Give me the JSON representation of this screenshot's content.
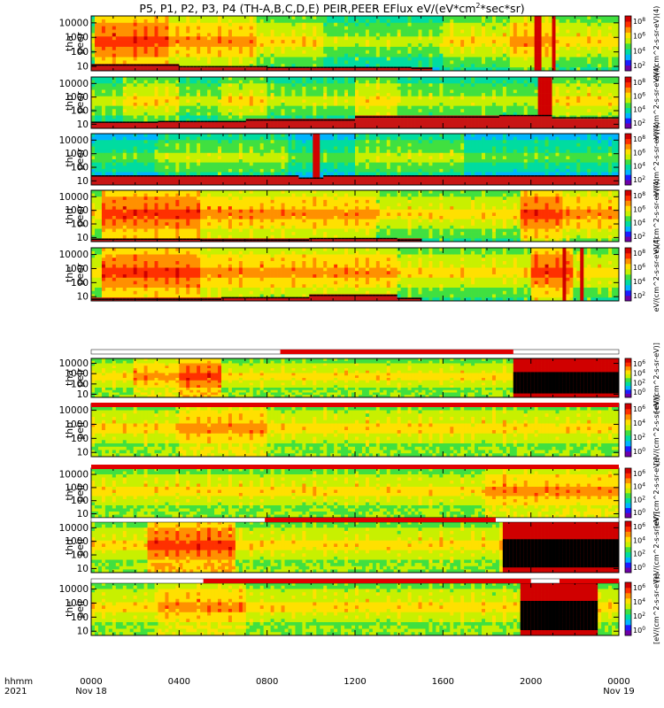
{
  "chart_data": {
    "type": "heatmap",
    "title": "P5, P1, P2, P3, P4 (TH-A,B,C,D,E) PEIR,PEER EFlux eV/(eV*cm",
    "title_sup": "2",
    "title_tail": "*sec*sr)",
    "x_axis": {
      "row1_label": "hhmm",
      "row2_label": "2021",
      "ticks": [
        {
          "hour": 0,
          "label": "0000",
          "date": "Nov 18"
        },
        {
          "hour": 4,
          "label": "0400",
          "date": ""
        },
        {
          "hour": 8,
          "label": "0800",
          "date": ""
        },
        {
          "hour": 12,
          "label": "1200",
          "date": ""
        },
        {
          "hour": 16,
          "label": "1600",
          "date": ""
        },
        {
          "hour": 20,
          "label": "2000",
          "date": ""
        },
        {
          "hour": 24,
          "label": "0000",
          "date": "Nov 19"
        }
      ],
      "range_hours": [
        0,
        24
      ]
    },
    "y_axis": {
      "scale": "log",
      "ticks": [
        "10",
        "100",
        "1000",
        "10000"
      ],
      "range": [
        5,
        30000
      ]
    },
    "colorbar": {
      "colors": [
        "#6e00a8",
        "#1c1cff",
        "#00b4ff",
        "#00dca0",
        "#40e040",
        "#c8f000",
        "#ffe000",
        "#ff9000",
        "#ff3000",
        "#d00000"
      ],
      "peer_ticks": [
        {
          "base": "10",
          "exp": "8"
        },
        {
          "base": "10",
          "exp": "6"
        },
        {
          "base": "10",
          "exp": "4"
        },
        {
          "base": "10",
          "exp": "2"
        }
      ],
      "peir_ticks": [
        {
          "base": "10",
          "exp": "6"
        },
        {
          "base": "10",
          "exp": "4"
        },
        {
          "base": "10",
          "exp": "2"
        },
        {
          "base": "10",
          "exp": "0"
        }
      ],
      "peer_label": "eV/(cm^2-s-sr-eV)(4)",
      "peir_label": "[eV/(cm^2-s-sr-eV)]"
    },
    "panels": [
      {
        "probe": "tha",
        "product": "peer",
        "base_level": 6,
        "activity": [
          [
            0,
            0.2,
            5
          ],
          [
            0.2,
            1.0,
            8
          ],
          [
            1.0,
            3.5,
            8
          ],
          [
            3.5,
            7.5,
            7
          ],
          [
            7.5,
            10.5,
            6
          ],
          [
            10.5,
            14.0,
            5
          ],
          [
            14.0,
            16.0,
            5
          ],
          [
            16.0,
            19.0,
            6
          ],
          [
            19.0,
            21.0,
            7
          ],
          [
            21.0,
            24.0,
            6
          ]
        ],
        "floor": [
          [
            0,
            0.8
          ],
          [
            4,
            0.6
          ],
          [
            8,
            0.5
          ],
          [
            12,
            0.5
          ],
          [
            14.5,
            0.4
          ],
          [
            15.5,
            0.0
          ]
        ],
        "gaps": [
          [
            20.2,
            20.5
          ],
          [
            21.0,
            21.1
          ]
        ]
      },
      {
        "probe": "thb",
        "product": "peer",
        "base_level": 5,
        "activity": [
          [
            0,
            1.5,
            5
          ],
          [
            1.5,
            4.0,
            6
          ],
          [
            4.0,
            6.0,
            5
          ],
          [
            6.0,
            8.0,
            6
          ],
          [
            8.0,
            12.0,
            5
          ],
          [
            12.0,
            14.0,
            6
          ],
          [
            14.0,
            18.0,
            5
          ],
          [
            18.0,
            21.0,
            5
          ],
          [
            21.0,
            24.0,
            6
          ]
        ],
        "floor": [
          [
            0,
            0.9
          ],
          [
            3,
            1.0
          ],
          [
            7,
            1.2
          ],
          [
            12,
            1.6
          ],
          [
            18.5,
            1.8
          ],
          [
            21,
            1.5
          ],
          [
            24,
            1.8
          ]
        ],
        "gaps": [
          [
            20.4,
            20.9
          ]
        ]
      },
      {
        "probe": "thc",
        "product": "peer",
        "base_level": 4,
        "activity": [
          [
            0,
            3.0,
            4
          ],
          [
            3.0,
            9.0,
            5
          ],
          [
            9.0,
            12.0,
            4
          ],
          [
            12.0,
            17.0,
            5
          ],
          [
            17.0,
            24.0,
            4
          ]
        ],
        "floor": [
          [
            0,
            1.3
          ],
          [
            9.5,
            1.0
          ],
          [
            10.5,
            1.3
          ],
          [
            24,
            1.5
          ]
        ],
        "gaps": [
          [
            10.1,
            10.4
          ]
        ]
      },
      {
        "probe": "thd",
        "product": "peer",
        "base_level": 6,
        "activity": [
          [
            0,
            0.5,
            6
          ],
          [
            0.5,
            5.0,
            8
          ],
          [
            5.0,
            9.0,
            7
          ],
          [
            9.0,
            13.0,
            7
          ],
          [
            13.0,
            15.0,
            6
          ],
          [
            15.0,
            19.5,
            6
          ],
          [
            19.5,
            21.5,
            8
          ],
          [
            21.5,
            24.0,
            7
          ]
        ],
        "floor": [
          [
            0,
            0.4
          ],
          [
            5,
            0.3
          ],
          [
            10,
            0.5
          ],
          [
            14,
            0.3
          ],
          [
            15,
            0.0
          ]
        ],
        "gaps": [
          [
            20.6,
            20.7
          ]
        ]
      },
      {
        "probe": "the",
        "product": "peer",
        "base_level": 6,
        "activity": [
          [
            0,
            0.5,
            6
          ],
          [
            0.5,
            5.0,
            8
          ],
          [
            5.0,
            10.0,
            7
          ],
          [
            10.0,
            14.0,
            7
          ],
          [
            14.0,
            17.0,
            6
          ],
          [
            17.0,
            20.0,
            6
          ],
          [
            20.0,
            22.0,
            8
          ],
          [
            22.0,
            24.0,
            6
          ]
        ],
        "floor": [
          [
            0,
            0.3
          ],
          [
            6,
            0.5
          ],
          [
            10,
            0.8
          ],
          [
            14,
            0.4
          ],
          [
            15,
            0.0
          ]
        ],
        "gaps": [
          [
            21.4,
            21.6
          ],
          [
            22.3,
            22.4
          ]
        ]
      },
      {
        "probe": "tha",
        "product": "peir",
        "base_level": 5,
        "activity": [
          [
            0,
            2.0,
            6
          ],
          [
            2.0,
            4.0,
            7
          ],
          [
            4.0,
            6.0,
            8
          ],
          [
            6.0,
            8.0,
            6
          ],
          [
            8.0,
            19.0,
            6
          ],
          [
            19.0,
            24.0,
            6
          ]
        ],
        "floor": [
          [
            0,
            0.0
          ]
        ],
        "gaps": [
          [
            19.2,
            24.0
          ]
        ],
        "bar": [
          [
            0,
            24,
            "white"
          ],
          [
            8.6,
            19.2,
            "red"
          ]
        ]
      },
      {
        "probe": "thb",
        "product": "peir",
        "base_level": 4,
        "activity": [
          [
            0,
            4.0,
            6
          ],
          [
            4.0,
            8.0,
            7
          ],
          [
            8.0,
            12.0,
            6
          ],
          [
            12.0,
            18.0,
            6
          ],
          [
            18.0,
            24.0,
            6
          ]
        ],
        "floor": [
          [
            0,
            0.0
          ]
        ],
        "gaps": [],
        "bar": [
          [
            0,
            24,
            "red"
          ]
        ]
      },
      {
        "probe": "thc",
        "product": "peir",
        "base_level": 5,
        "activity": [
          [
            0,
            3.0,
            6
          ],
          [
            3.0,
            8.0,
            6
          ],
          [
            8.0,
            12.0,
            6
          ],
          [
            12.0,
            18.0,
            6
          ],
          [
            18.0,
            24.0,
            7
          ]
        ],
        "floor": [
          [
            0,
            0.0
          ]
        ],
        "gaps": [],
        "bar": [
          [
            0,
            24,
            "red"
          ]
        ]
      },
      {
        "probe": "thd",
        "product": "peir",
        "base_level": 5,
        "activity": [
          [
            0,
            2.5,
            6
          ],
          [
            2.5,
            6.5,
            8
          ],
          [
            6.5,
            12.0,
            6
          ],
          [
            12.0,
            18.5,
            6
          ],
          [
            18.5,
            24.0,
            7
          ]
        ],
        "floor": [
          [
            0,
            0.0
          ]
        ],
        "gaps": [
          [
            18.7,
            24.0
          ]
        ],
        "bar": [
          [
            0,
            24,
            "white"
          ],
          [
            7.9,
            18.4,
            "red"
          ]
        ]
      },
      {
        "probe": "the",
        "product": "peir",
        "base_level": 5,
        "activity": [
          [
            0,
            3.0,
            6
          ],
          [
            3.0,
            7.0,
            7
          ],
          [
            7.0,
            14.0,
            6
          ],
          [
            14.0,
            19.0,
            6
          ],
          [
            19.0,
            24.0,
            6
          ]
        ],
        "floor": [
          [
            0,
            0.0
          ]
        ],
        "gaps": [
          [
            19.6,
            23.0
          ]
        ],
        "bar": [
          [
            0,
            24,
            "white"
          ],
          [
            5.1,
            20.0,
            "red"
          ],
          [
            21.3,
            24.0,
            "red"
          ]
        ]
      }
    ]
  }
}
